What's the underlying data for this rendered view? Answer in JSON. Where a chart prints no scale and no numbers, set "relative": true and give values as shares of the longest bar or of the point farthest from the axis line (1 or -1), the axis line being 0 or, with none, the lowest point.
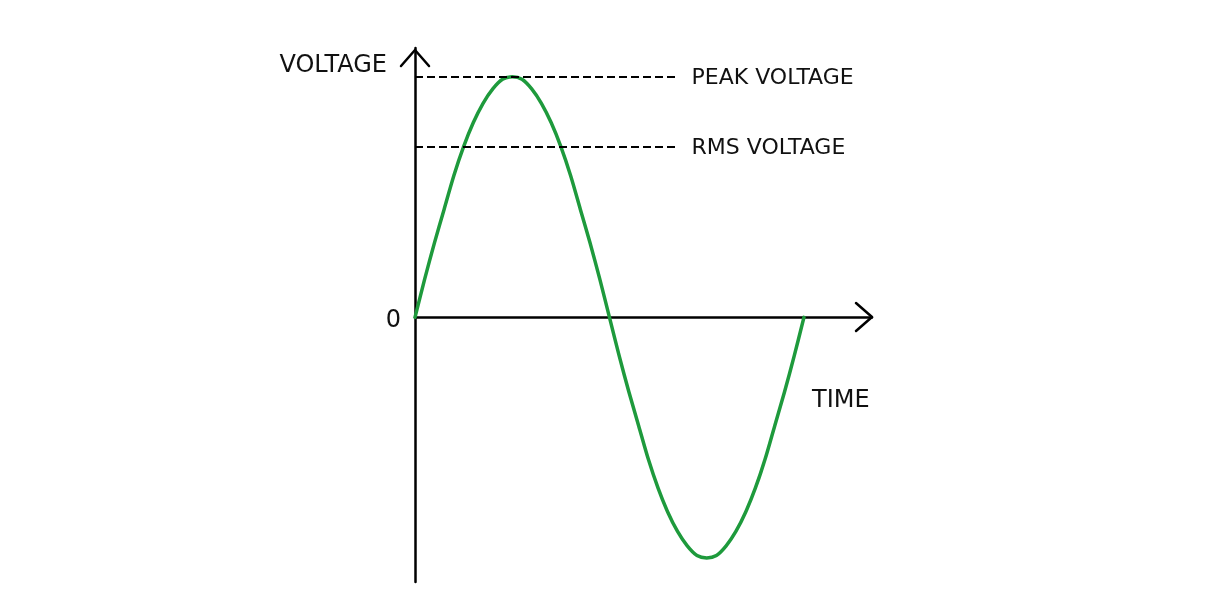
{
  "chart_data": {
    "type": "line",
    "relative": true,
    "xlabel": "TIME",
    "ylabel": "VOLTAGE",
    "annotations": [
      "0"
    ],
    "marker": "none",
    "line_style": "solid",
    "categories": [
      null,
      null,
      null,
      null,
      null,
      null,
      null,
      null,
      null,
      null,
      null,
      null,
      null,
      null,
      null,
      null,
      null,
      null,
      null,
      null,
      null,
      null,
      null,
      null,
      null,
      null,
      null,
      null,
      null,
      null,
      null,
      null,
      null,
      null,
      null,
      null,
      null,
      null,
      null,
      null,
      null,
      null,
      null,
      null,
      null,
      null,
      null,
      null
    ],
    "series": [
      {
        "color": "#1e9a3c",
        "values": [
          0,
          0.16,
          0.31,
          0.45,
          0.59,
          0.71,
          0.81,
          0.89,
          0.95,
          0.99,
          1,
          0.99,
          0.95,
          0.89,
          0.81,
          0.71,
          0.59,
          0.45,
          0.31,
          0.16,
          0,
          -0.16,
          -0.31,
          -0.45,
          -0.59,
          -0.71,
          -0.81,
          -0.89,
          -0.95,
          -0.99,
          -1,
          -0.99,
          -0.95,
          -0.89,
          -0.81,
          -0.71,
          -0.59,
          -0.45,
          -0.31,
          -0.16,
          0,
          null,
          null,
          null,
          null,
          null,
          null,
          null
        ]
      }
    ],
    "ref_lines": [
      {
        "axis": "y",
        "value": 1,
        "label": "PEAK VOLTAGE",
        "line_style": "dashed",
        "color": "#000000"
      },
      {
        "axis": "y",
        "value": 0.71,
        "label": "RMS VOLTAGE",
        "line_style": "dashed",
        "color": "#000000"
      }
    ]
  }
}
